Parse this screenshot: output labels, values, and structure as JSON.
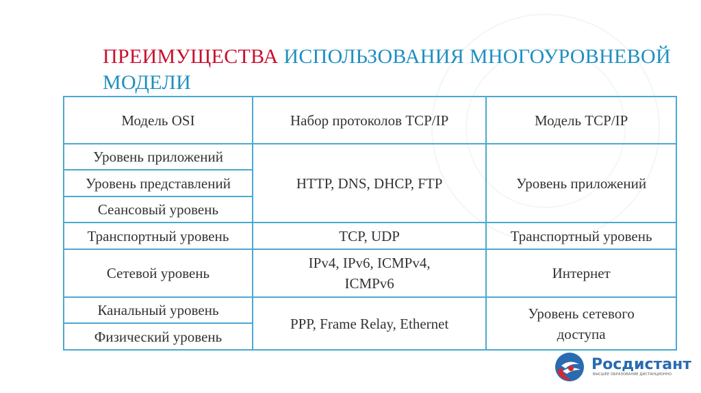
{
  "title": {
    "part1": "ПРЕИМУЩЕСТВА",
    "part2": " ИСПОЛЬЗОВАНИЯ МНОГОУРОВНЕВОЙ",
    "line2": "МОДЕЛИ"
  },
  "colors": {
    "title_accent": "#c8102e",
    "title_main": "#1f8fc0",
    "table_border": "#4aa8d2"
  },
  "table": {
    "headers": [
      "Модель OSI",
      "Набор протоколов TCP/IP",
      "Модель TCP/IP"
    ],
    "osi": [
      "Уровень приложений",
      "Уровень представлений",
      "Сеансовый уровень",
      "Транспортный уровень",
      "Сетевой уровень",
      "Канальный уровень",
      "Физический уровень"
    ],
    "protocols": [
      "HTTP, DNS, DHCP, FTP",
      "TCP, UDP",
      "IPv4, IPv6, ICMPv4, ICMPv6",
      "PPP, Frame Relay, Ethernet"
    ],
    "tcpip": [
      "Уровень приложений",
      "Транспортный уровень",
      "Интернет",
      "Уровень сетевого доступа"
    ]
  },
  "logo": {
    "name": "Росдистант",
    "tagline": "ВЫСШЕЕ ОБРАЗОВАНИЕ ДИСТАНЦИОННО"
  }
}
